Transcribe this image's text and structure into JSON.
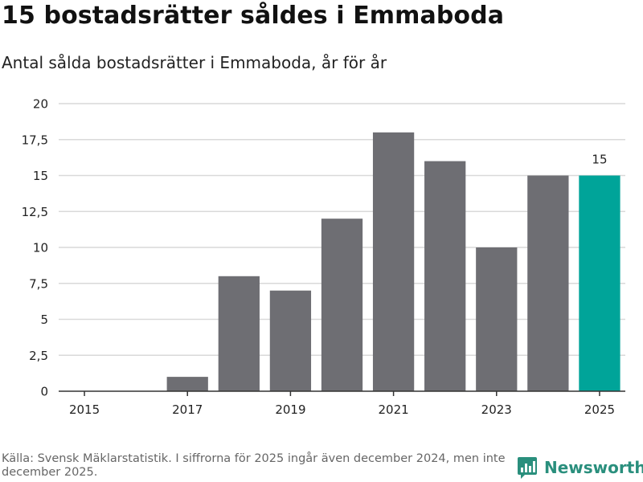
{
  "title": "15 bostadsrätter såldes i Emmaboda",
  "subtitle": "Antal sålda bostadsrätter i Emmaboda, år för år",
  "source": "Källa: Svensk Mäklarstatistik. I siffrorna för 2025 ingår även december 2024, men inte december 2025.",
  "brand": "Newsworthy",
  "colors": {
    "bar": "#6e6e73",
    "highlight": "#00a499",
    "brand": "#2a8f7d",
    "grid": "#d9d9d9"
  },
  "chart_data": {
    "type": "bar",
    "title": "15 bostadsrätter såldes i Emmaboda",
    "subtitle": "Antal sålda bostadsrätter i Emmaboda, år för år",
    "categories": [
      "2015",
      "2016",
      "2017",
      "2018",
      "2019",
      "2020",
      "2021",
      "2022",
      "2023",
      "2024",
      "2025"
    ],
    "values": [
      0,
      0,
      1,
      8,
      7,
      12,
      18,
      16,
      10,
      15,
      15
    ],
    "highlight_index": 10,
    "data_labels": [
      {
        "index": 10,
        "text": "15"
      }
    ],
    "x_tick_labels": [
      "2015",
      "2017",
      "2019",
      "2021",
      "2023",
      "2025"
    ],
    "y_ticks": [
      0,
      2.5,
      5,
      7.5,
      10,
      12.5,
      15,
      17.5,
      20
    ],
    "y_tick_labels": [
      "0",
      "2,5",
      "5",
      "7,5",
      "10",
      "12,5",
      "15",
      "17,5",
      "20"
    ],
    "ylim": [
      0,
      20
    ],
    "xlabel": "",
    "ylabel": "",
    "grid": true
  }
}
